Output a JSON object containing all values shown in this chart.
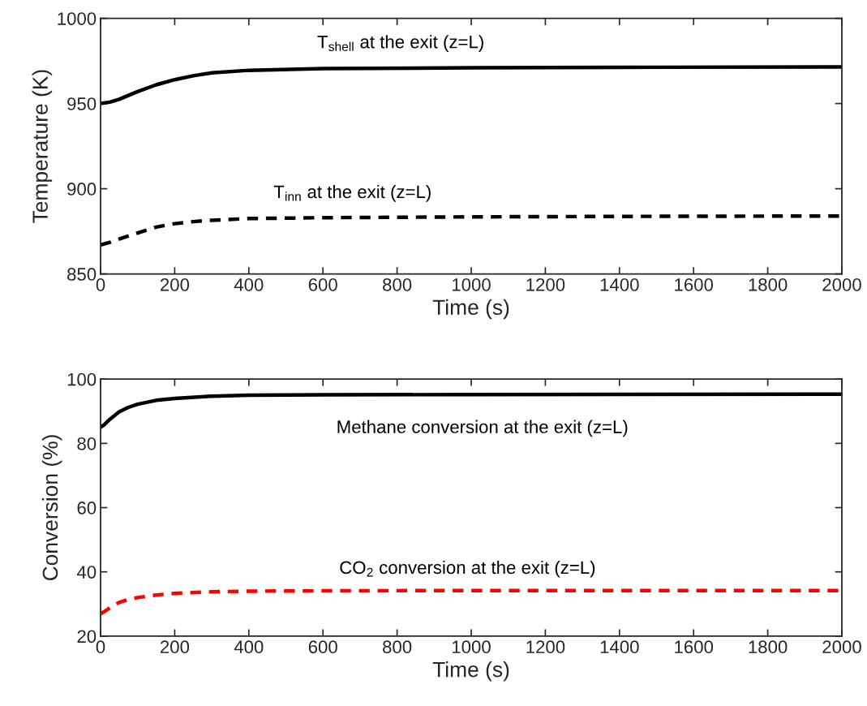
{
  "chart_data": [
    {
      "type": "line",
      "xlabel": "Time (s)",
      "ylabel": "Temperature (K)",
      "xlim": [
        0,
        2000
      ],
      "xticks": [
        0,
        200,
        400,
        600,
        800,
        1000,
        1200,
        1400,
        1600,
        1800,
        2000
      ],
      "ylim": [
        850,
        1000
      ],
      "yticks": [
        850,
        900,
        950,
        1000
      ],
      "grid": false,
      "legend": false,
      "x": [
        0,
        25,
        50,
        100,
        150,
        200,
        250,
        300,
        400,
        600,
        1000,
        1500,
        2000
      ],
      "series": [
        {
          "color": "#000000",
          "line_style": "solid",
          "values": [
            950,
            950.8,
            952.5,
            957,
            961,
            964,
            966.3,
            968,
            969.5,
            970.5,
            971,
            971.3,
            971.5
          ]
        },
        {
          "color": "#000000",
          "line_style": "dashed",
          "values": [
            867,
            868.5,
            870.5,
            874,
            877.5,
            879.5,
            880.7,
            881.5,
            882.5,
            883,
            883.5,
            883.8,
            884
          ]
        }
      ],
      "annotations": [
        {
          "text": "T$_{shell}$ at the exit (z=L)",
          "x": 810,
          "y": 971
        },
        {
          "text": "T$_{inn}$ at the exit (z=L)",
          "x": 680,
          "y": 883
        }
      ]
    },
    {
      "type": "line",
      "xlabel": "Time (s)",
      "ylabel": "Conversion (%)",
      "xlim": [
        0,
        2000
      ],
      "xticks": [
        0,
        200,
        400,
        600,
        800,
        1000,
        1200,
        1400,
        1600,
        1800,
        2000
      ],
      "ylim": [
        20,
        100
      ],
      "yticks": [
        20,
        40,
        60,
        80,
        100
      ],
      "grid": false,
      "legend": false,
      "x": [
        0,
        10,
        25,
        50,
        75,
        100,
        150,
        200,
        300,
        400,
        600,
        1000,
        2000
      ],
      "series": [
        {
          "color": "#000000",
          "line_style": "solid",
          "values": [
            85,
            85.8,
            87.5,
            89.8,
            91.2,
            92.2,
            93.4,
            94,
            94.7,
            95,
            95.1,
            95.2,
            95.3
          ]
        },
        {
          "color": "#ff0000",
          "line_style": "dashed",
          "values": [
            27,
            27.6,
            28.8,
            30.5,
            31.4,
            32,
            32.8,
            33.3,
            33.8,
            34,
            34.1,
            34.2,
            34.2
          ]
        }
      ],
      "annotations": [
        {
          "text": "Methane conversion at the exit (z=L)",
          "x": 1030,
          "y": 95
        },
        {
          "text": "CO$_{2}$ conversion at the exit (z=L)",
          "x": 990,
          "y": 34
        }
      ]
    }
  ]
}
